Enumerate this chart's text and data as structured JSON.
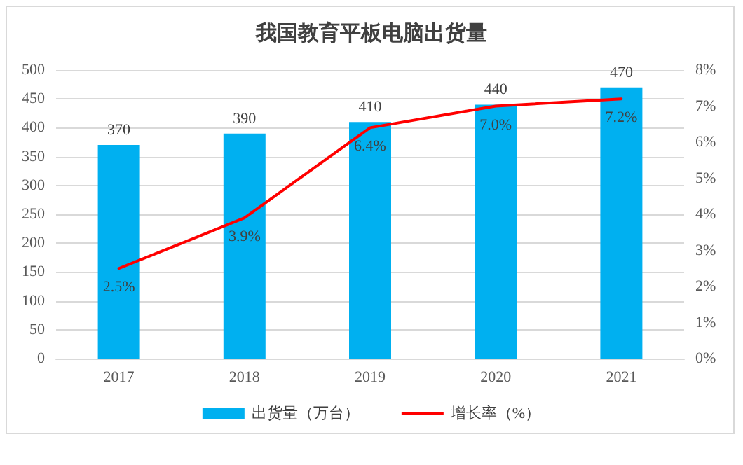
{
  "chart_data": {
    "type": "bar",
    "title": "我国教育平板电脑出货量",
    "categories": [
      "2017",
      "2018",
      "2019",
      "2020",
      "2021"
    ],
    "series": [
      {
        "name": "出货量（万台）",
        "color": "#00b0f0",
        "values": [
          370,
          390,
          410,
          440,
          470
        ],
        "value_labels": [
          "370",
          "390",
          "410",
          "440",
          "470"
        ]
      },
      {
        "name": "增长率（%）",
        "type": "line",
        "axis": "y2",
        "color": "#ff0000",
        "values": [
          2.5,
          3.9,
          6.4,
          7.0,
          7.2
        ],
        "value_labels": [
          "2.5%",
          "3.9%",
          "6.4%",
          "7.0%",
          "7.2%"
        ],
        "marker": "none",
        "line_style": "solid"
      }
    ],
    "ylim": [
      0,
      500
    ],
    "yticks": [
      0,
      50,
      100,
      150,
      200,
      250,
      300,
      350,
      400,
      450,
      500
    ],
    "y2lim": [
      0,
      8
    ],
    "y2ticks": [
      {
        "value": 0,
        "label": "0%"
      },
      {
        "value": 1,
        "label": "1%"
      },
      {
        "value": 2,
        "label": "2%"
      },
      {
        "value": 3,
        "label": "3%"
      },
      {
        "value": 4,
        "label": "4%"
      },
      {
        "value": 5,
        "label": "5%"
      },
      {
        "value": 6,
        "label": "6%"
      },
      {
        "value": 7,
        "label": "7%"
      },
      {
        "value": 8,
        "label": "8%"
      }
    ],
    "grid": "y",
    "legend": "bottom"
  }
}
